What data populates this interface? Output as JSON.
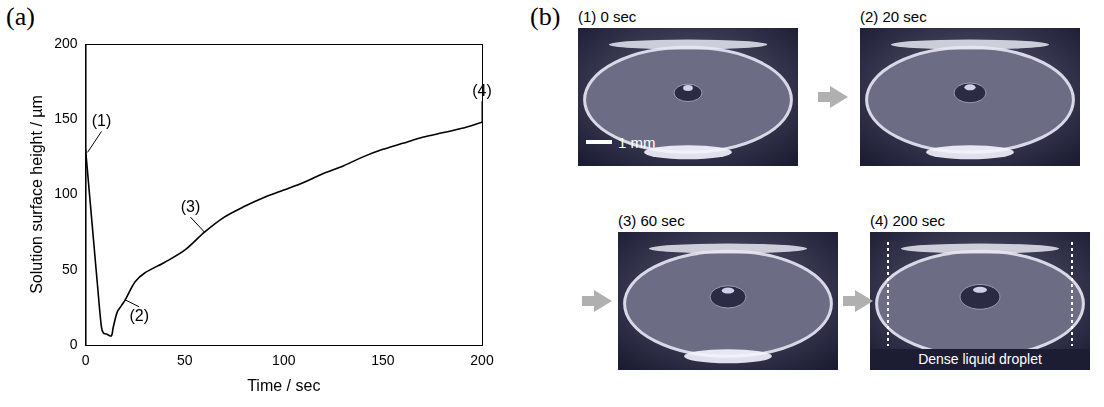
{
  "chart_data": {
    "type": "line",
    "panel_label": "(a)",
    "x_label": "Time / sec",
    "y_label": "Solution surface height / µm",
    "x": [
      0,
      2,
      4,
      6,
      8,
      9,
      11,
      13,
      14,
      16,
      18,
      20,
      25,
      30,
      40,
      50,
      60,
      70,
      80,
      90,
      100,
      110,
      120,
      130,
      140,
      150,
      160,
      170,
      180,
      190,
      200
    ],
    "values": [
      130,
      100,
      70,
      40,
      12,
      8,
      7,
      6,
      12,
      22,
      26,
      30,
      42,
      48,
      55,
      63,
      75,
      85,
      92,
      98,
      103,
      108,
      114,
      119,
      125,
      130,
      134,
      138,
      141,
      144,
      148
    ],
    "color": "#000000",
    "xlim": [
      0,
      200
    ],
    "xticks": [
      0,
      50,
      100,
      150,
      200
    ],
    "ylim": [
      0,
      200
    ],
    "yticks": [
      0,
      50,
      100,
      150,
      200
    ],
    "grid": false,
    "annotations": [
      {
        "text": "(1)",
        "x": 1,
        "y": 128
      },
      {
        "text": "(2)",
        "x": 20,
        "y": 30
      },
      {
        "text": "(3)",
        "x": 60,
        "y": 75
      },
      {
        "text": "(4)",
        "x": 200,
        "y": 148
      }
    ]
  },
  "photo_panel": {
    "panel_label": "(b)",
    "frames": [
      {
        "label": "(1) 0 sec"
      },
      {
        "label": "(2) 20 sec"
      },
      {
        "label": "(3) 60 sec"
      },
      {
        "label": "(4) 200 sec"
      }
    ],
    "scale_bar": "1 mm",
    "annotation": "Dense liquid droplet"
  }
}
